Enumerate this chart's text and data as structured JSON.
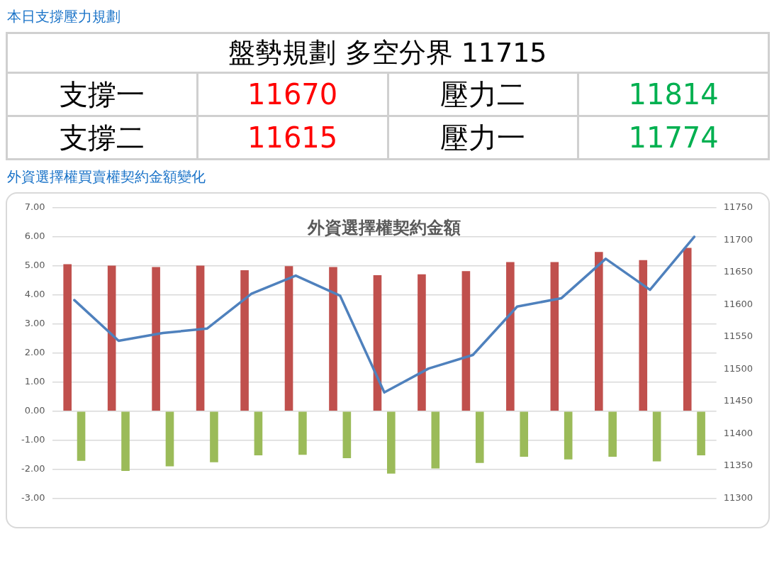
{
  "chart_data": [
    {
      "type": "other",
      "title": "本日支撐壓力規劃",
      "subtitle": "盤勢規劃 多空分界 11715",
      "categories": [
        "支撐一",
        "壓力二",
        "支撐二",
        "壓力一"
      ],
      "values": [
        11670,
        11814,
        11615,
        11774
      ],
      "colors": [
        "#ff0000",
        "#00b050",
        "#ff0000",
        "#00b050"
      ],
      "data_labels": true
    },
    {
      "type": "bar",
      "title": "外資選擇權買賣權契約金額變化",
      "subtitle": "外資選擇權契約金額",
      "categories": [
        null,
        null,
        null,
        null,
        null,
        null,
        null,
        null,
        null,
        null,
        null,
        null,
        null,
        null,
        null
      ],
      "series": [
        {
          "color": "#c0504d",
          "values": [
            5.06,
            5.01,
            4.96,
            5.01,
            4.85,
            4.99,
            4.96,
            4.68,
            4.71,
            4.82,
            5.13,
            5.13,
            5.48,
            5.2,
            5.62
          ]
        },
        {
          "color": "#9bbb59",
          "values": [
            -1.71,
            -2.06,
            -1.9,
            -1.76,
            -1.52,
            -1.5,
            -1.62,
            -2.15,
            -1.97,
            -1.78,
            -1.57,
            -1.66,
            -1.57,
            -1.73,
            -1.52
          ]
        },
        {
          "type": "line",
          "axis": "y2",
          "color": "#4f81bd",
          "marker": "none",
          "values": [
            11607,
            11544,
            11556,
            11563,
            11617,
            11645,
            11614,
            11464,
            11501,
            11522,
            11597,
            11610,
            11671,
            11623,
            11705
          ]
        }
      ],
      "ylim": [
        -3,
        7
      ],
      "yticks": [
        {
          "value": -3,
          "label": "-3.00"
        },
        {
          "value": -2,
          "label": "-2.00"
        },
        {
          "value": -1,
          "label": "-1.00"
        },
        {
          "value": 0,
          "label": "0.00"
        },
        {
          "value": 1,
          "label": "1.00"
        },
        {
          "value": 2,
          "label": "2.00"
        },
        {
          "value": 3,
          "label": "3.00"
        },
        {
          "value": 4,
          "label": "4.00"
        },
        {
          "value": 5,
          "label": "5.00"
        },
        {
          "value": 6,
          "label": "6.00"
        },
        {
          "value": 7,
          "label": "7.00"
        }
      ],
      "y2lim": [
        11300,
        11750
      ],
      "y2ticks": [
        11300,
        11350,
        11400,
        11450,
        11500,
        11550,
        11600,
        11650,
        11700,
        11750
      ],
      "grid": "y",
      "legend": false
    }
  ]
}
